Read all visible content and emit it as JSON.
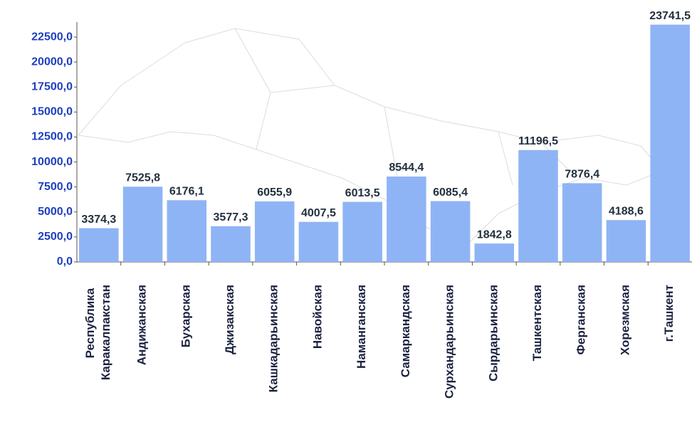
{
  "chart_data": {
    "type": "bar",
    "categories": [
      "Республика Каракалпакстан",
      "Андижанская",
      "Бухарская",
      "Джизакская",
      "Кашкадарьинская",
      "Навойская",
      "Наманганская",
      "Самаркандская",
      "Сурхандарьинская",
      "Сырдарьинская",
      "Ташкентская",
      "Ферганская",
      "Хорезмская",
      "г.Ташкент"
    ],
    "values": [
      3374.3,
      7525.8,
      6176.1,
      3577.3,
      6055.9,
      4007.5,
      6013.5,
      8544.4,
      6085.4,
      1842.8,
      11196.5,
      7876.4,
      4188.6,
      23741.5
    ],
    "value_labels": [
      "3374,3",
      "7525,8",
      "6176,1",
      "3577,3",
      "6055,9",
      "4007,5",
      "6013,5",
      "8544,4",
      "6085,4",
      "1842,8",
      "11196,5",
      "7876,4",
      "4188,6",
      "23741,5"
    ],
    "color": "#8fb4f5",
    "ylim": [
      0,
      24000
    ],
    "yticks": [
      {
        "value": 0,
        "label": "0,0"
      },
      {
        "value": 2500,
        "label": "2500,0"
      },
      {
        "value": 5000,
        "label": "5000,0"
      },
      {
        "value": 7500,
        "label": "7500,0"
      },
      {
        "value": 10000,
        "label": "10000,0"
      },
      {
        "value": 12500,
        "label": "12500,0"
      },
      {
        "value": 15000,
        "label": "15000,0"
      },
      {
        "value": 17500,
        "label": "17500,0"
      },
      {
        "value": 20000,
        "label": "20000,0"
      },
      {
        "value": 22500,
        "label": "22500,0"
      }
    ],
    "grid": false
  }
}
